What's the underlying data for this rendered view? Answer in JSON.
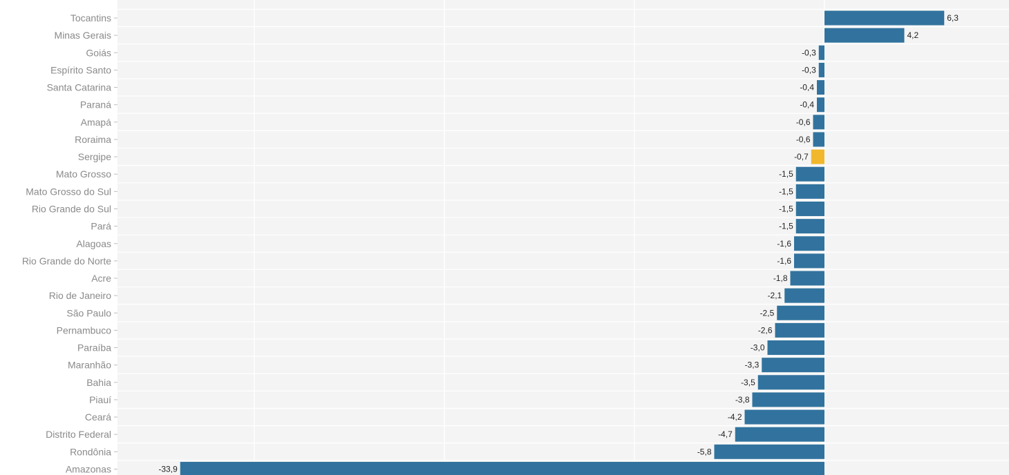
{
  "chart_data": {
    "type": "bar",
    "orientation": "horizontal",
    "title": "",
    "xlabel": "",
    "ylabel": "",
    "grid": true,
    "xlim": [
      -34.5,
      9.5
    ],
    "categories": [
      "Tocantins",
      "Minas Gerais",
      "Goiás",
      "Espírito Santo",
      "Santa Catarina",
      "Paraná",
      "Amapá",
      "Roraima",
      "Sergipe",
      "Mato Grosso",
      "Mato Grosso do Sul",
      "Rio Grande do Sul",
      "Pará",
      "Alagoas",
      "Rio Grande do Norte",
      "Acre",
      "Rio de Janeiro",
      "São Paulo",
      "Pernambuco",
      "Paraíba",
      "Maranhão",
      "Bahia",
      "Piauí",
      "Ceará",
      "Distrito Federal",
      "Rondônia",
      "Amazonas"
    ],
    "values": [
      6.3,
      4.2,
      -0.3,
      -0.3,
      -0.4,
      -0.4,
      -0.6,
      -0.6,
      -0.7,
      -1.5,
      -1.5,
      -1.5,
      -1.5,
      -1.6,
      -1.6,
      -1.8,
      -2.1,
      -2.5,
      -2.6,
      -3.0,
      -3.3,
      -3.5,
      -3.8,
      -4.2,
      -4.7,
      -5.8,
      -33.9
    ],
    "value_labels": [
      "6,3",
      "4,2",
      "-0,3",
      "-0,3",
      "-0,4",
      "-0,4",
      "-0,6",
      "-0,6",
      "-0,7",
      "-1,5",
      "-1,5",
      "-1,5",
      "-1,5",
      "-1,6",
      "-1,6",
      "-1,8",
      "-2,1",
      "-2,5",
      "-2,6",
      "-3,0",
      "-3,3",
      "-3,5",
      "-3,8",
      "-4,2",
      "-4,7",
      "-5,8",
      "-33,9"
    ],
    "highlight_category": "Sergipe",
    "colors": {
      "bar": "#31739e",
      "highlight": "#f1b82d",
      "plot_bg": "#f4f4f4",
      "grid": "#ffffff"
    }
  }
}
